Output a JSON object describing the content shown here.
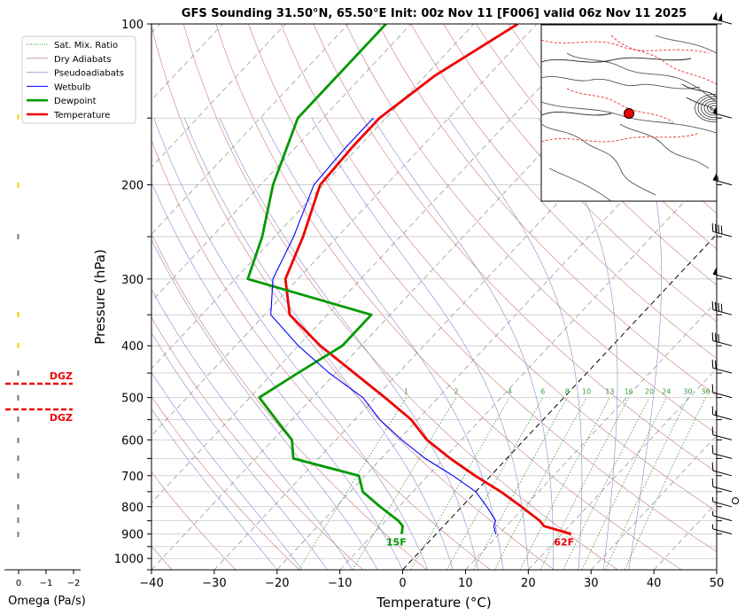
{
  "chart_data": {
    "type": "skew-t",
    "title": "GFS Sounding 31.50°N, 65.50°E Init: 00z Nov 11 [F006] valid 06z Nov 11 2025",
    "xlabel": "Temperature (°C)",
    "ylabel": "Pressure (hPa)",
    "xlim": [
      -40,
      50
    ],
    "ylim": [
      1050,
      100
    ],
    "y_scale": "log",
    "grid": true,
    "x_ticks": [
      -40,
      -30,
      -20,
      -10,
      0,
      10,
      20,
      30,
      40,
      50
    ],
    "x_tick_labels": [
      "−40",
      "−30",
      "−20",
      "−10",
      "0",
      "10",
      "20",
      "30",
      "40",
      "50"
    ],
    "y_ticks": [
      100,
      200,
      300,
      400,
      500,
      600,
      700,
      800,
      900,
      1000
    ],
    "y_tick_labels": [
      "100",
      "200",
      "300",
      "400",
      "500",
      "600",
      "700",
      "800",
      "900",
      "1000"
    ],
    "legend_position": "top-left",
    "legend": [
      {
        "label": "Sat. Mix. Ratio",
        "color": "#2e8b2e",
        "style": "dotted"
      },
      {
        "label": "Dry Adiabats",
        "color": "#c06070",
        "style": "solid-thin"
      },
      {
        "label": "Pseudoadiabats",
        "color": "#8080c0",
        "style": "solid-thin"
      },
      {
        "label": "Wetbulb",
        "color": "#0000ff",
        "style": "solid"
      },
      {
        "label": "Dewpoint",
        "color": "#009900",
        "style": "solid-thick"
      },
      {
        "label": "Temperature",
        "color": "#ee0000",
        "style": "solid-thick"
      }
    ],
    "mixing_ratio_labels": [
      "1",
      "2",
      "4",
      "6",
      "8",
      "10",
      "13",
      "16",
      "20",
      "24",
      "30",
      "36"
    ],
    "mixing_ratio_values": [
      1,
      2,
      4,
      6,
      8,
      10,
      13,
      16,
      20,
      24,
      30,
      36
    ],
    "series": [
      {
        "name": "Temperature",
        "color": "#ee0000",
        "p": [
          900,
          870,
          850,
          800,
          750,
          700,
          650,
          600,
          550,
          500,
          450,
          400,
          350,
          300,
          250,
          200,
          170,
          150,
          125,
          100
        ],
        "t": [
          21.5,
          16,
          14.5,
          9.5,
          4,
          -2.5,
          -9,
          -15.5,
          -21,
          -28.5,
          -37,
          -46.5,
          -56,
          -62,
          -65.5,
          -70.5,
          -71,
          -71,
          -68.5,
          -63
        ]
      },
      {
        "name": "Dewpoint",
        "color": "#009900",
        "p": [
          900,
          870,
          850,
          800,
          750,
          700,
          650,
          600,
          550,
          500,
          450,
          400,
          350,
          300,
          250,
          200,
          150,
          125,
          100
        ],
        "t": [
          -5.5,
          -6.5,
          -8,
          -13,
          -18,
          -21,
          -34,
          -37,
          -42.5,
          -48.5,
          -46,
          -43,
          -43,
          -68,
          -72,
          -78,
          -84,
          -84,
          -84
        ]
      },
      {
        "name": "Wetbulb",
        "color": "#0000ff",
        "p": [
          900,
          870,
          850,
          800,
          750,
          700,
          650,
          600,
          550,
          500,
          450,
          400,
          350,
          300,
          250,
          200,
          170,
          150
        ],
        "t": [
          9.5,
          8,
          7.5,
          4,
          0,
          -6,
          -13,
          -19.5,
          -26,
          -32,
          -41,
          -50,
          -59,
          -64,
          -67,
          -71.5,
          -72,
          -72
        ]
      }
    ],
    "surface_labels": [
      {
        "text": "62F",
        "color": "#ee0000"
      },
      {
        "text": "15F",
        "color": "#009900"
      }
    ],
    "omega_panel": {
      "xlabel": "Omega (Pa/s)",
      "x_tick_labels": [
        "0",
        "−1",
        "−2"
      ],
      "dgz_label": "DGZ",
      "dgz_color": "#ee0000"
    },
    "wind_barbs_p": [
      100,
      150,
      200,
      250,
      300,
      350,
      400,
      450,
      500,
      550,
      600,
      650,
      700,
      750,
      800,
      850,
      900
    ]
  }
}
